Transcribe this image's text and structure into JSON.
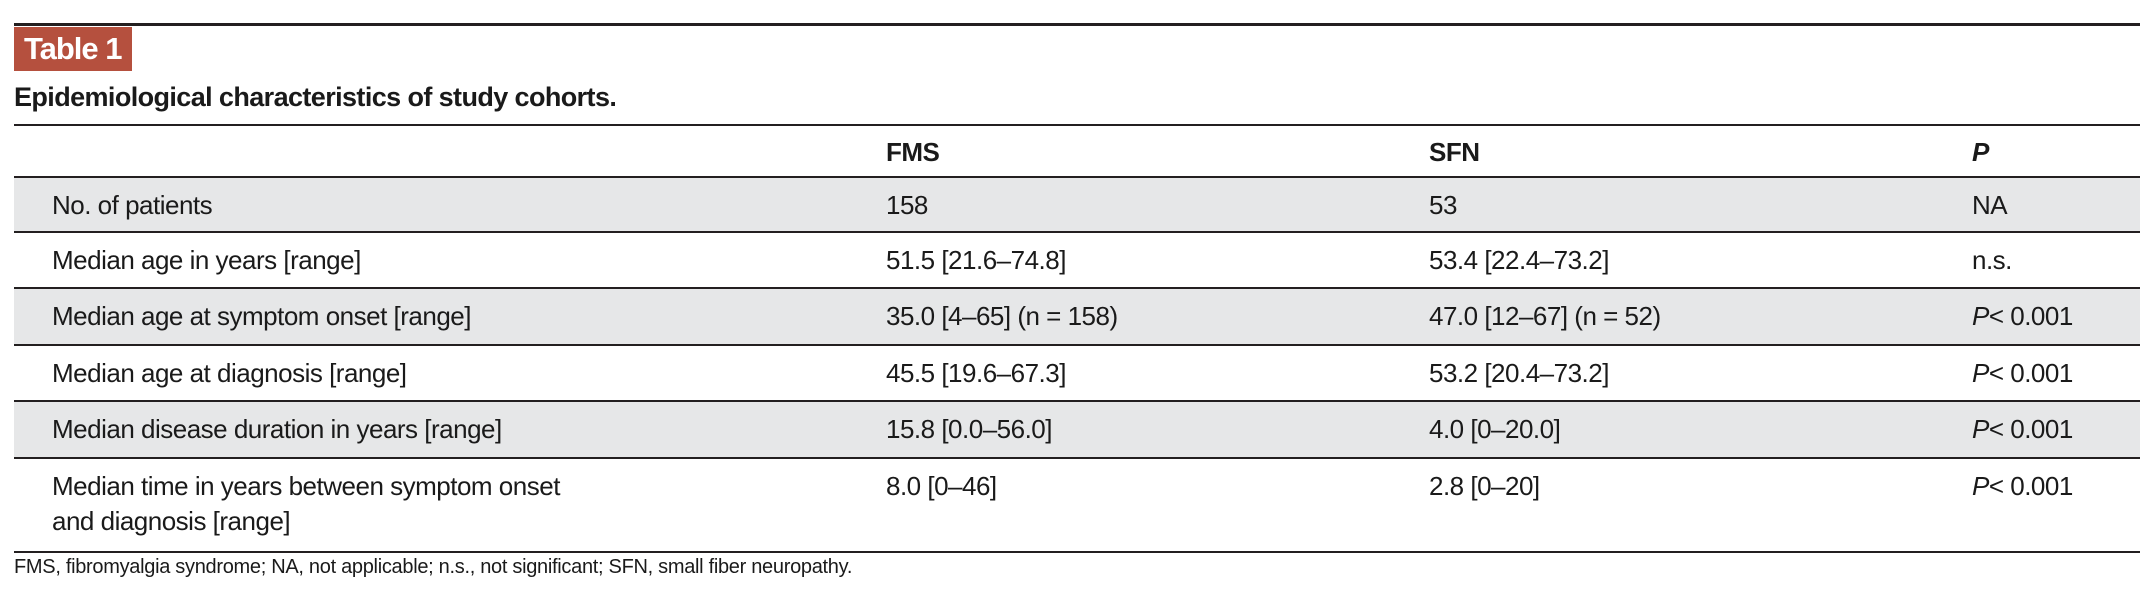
{
  "table_label": "Table 1",
  "title": "Epidemiological characteristics of study cohorts.",
  "columns": [
    "",
    "FMS",
    "SFN",
    "P"
  ],
  "rows": [
    {
      "label": "No. of patients",
      "fms": "158",
      "sfn": "53",
      "p": "NA",
      "p_italic": ""
    },
    {
      "label": "Median age in years [range]",
      "fms": "51.5 [21.6–74.8]",
      "sfn": "53.4 [22.4–73.2]",
      "p": "n.s.",
      "p_italic": ""
    },
    {
      "label": "Median age at symptom onset [range]",
      "fms": "35.0 [4–65] (n = 158)",
      "sfn": "47.0 [12–67] (n = 52)",
      "p": "< 0.001",
      "p_italic": "P"
    },
    {
      "label": "Median age at diagnosis [range]",
      "fms": "45.5 [19.6–67.3]",
      "sfn": "53.2 [20.4–73.2]",
      "p": "< 0.001",
      "p_italic": "P"
    },
    {
      "label": "Median disease duration in years [range]",
      "fms": "15.8 [0.0–56.0]",
      "sfn": "4.0 [0–20.0]",
      "p": "< 0.001",
      "p_italic": "P"
    },
    {
      "label": "Median time in years between symptom onset",
      "label_line2": "and diagnosis [range]",
      "fms": "8.0 [0–46]",
      "sfn": "2.8 [0–20]",
      "p": "< 0.001",
      "p_italic": "P"
    }
  ],
  "footnote": "FMS, fibromyalgia syndrome; NA, not applicable; n.s., not significant; SFN, small fiber neuropathy.",
  "colors": {
    "badge": "#b5503e",
    "shaded_row": "#e6e7e8",
    "rule": "#231f20"
  }
}
